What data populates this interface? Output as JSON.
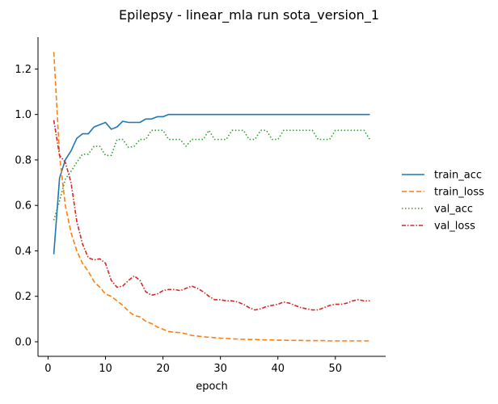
{
  "chart_data": {
    "type": "line",
    "title": "Epilepsy - linear_mla run sota_version_1",
    "xlabel": "epoch",
    "ylabel": "",
    "xlim": [
      -1.75,
      58.75
    ],
    "ylim": [
      -0.064,
      1.34
    ],
    "xticks": [
      0,
      10,
      20,
      30,
      40,
      50
    ],
    "yticks": [
      0.0,
      0.2,
      0.4,
      0.6,
      0.8,
      1.0,
      1.2
    ],
    "grid": false,
    "legend_placement": "right",
    "x": [
      1,
      2,
      3,
      4,
      5,
      6,
      7,
      8,
      9,
      10,
      11,
      12,
      13,
      14,
      15,
      16,
      17,
      18,
      19,
      20,
      21,
      22,
      23,
      24,
      25,
      26,
      27,
      28,
      29,
      30,
      31,
      32,
      33,
      34,
      35,
      36,
      37,
      38,
      39,
      40,
      41,
      42,
      43,
      44,
      45,
      46,
      47,
      48,
      49,
      50,
      51,
      52,
      53,
      54,
      55,
      56
    ],
    "series": [
      {
        "name": "train_acc",
        "color": "#1f77b4",
        "dash": "solid",
        "values": [
          0.385,
          0.72,
          0.8,
          0.84,
          0.895,
          0.915,
          0.915,
          0.945,
          0.955,
          0.965,
          0.935,
          0.945,
          0.97,
          0.965,
          0.965,
          0.965,
          0.98,
          0.98,
          0.99,
          0.99,
          1.0,
          1.0,
          1.0,
          1.0,
          1.0,
          1.0,
          1.0,
          1.0,
          1.0,
          1.0,
          1.0,
          1.0,
          1.0,
          1.0,
          1.0,
          1.0,
          1.0,
          1.0,
          1.0,
          1.0,
          1.0,
          1.0,
          1.0,
          1.0,
          1.0,
          1.0,
          1.0,
          1.0,
          1.0,
          1.0,
          1.0,
          1.0,
          1.0,
          1.0,
          1.0,
          1.0
        ]
      },
      {
        "name": "train_loss",
        "color": "#ff7f0e",
        "dash": "dashed",
        "values": [
          1.275,
          0.82,
          0.6,
          0.48,
          0.4,
          0.345,
          0.31,
          0.265,
          0.24,
          0.21,
          0.2,
          0.18,
          0.16,
          0.135,
          0.115,
          0.11,
          0.09,
          0.08,
          0.065,
          0.055,
          0.045,
          0.042,
          0.04,
          0.035,
          0.028,
          0.025,
          0.022,
          0.02,
          0.018,
          0.016,
          0.015,
          0.013,
          0.012,
          0.011,
          0.01,
          0.01,
          0.009,
          0.008,
          0.008,
          0.007,
          0.007,
          0.006,
          0.006,
          0.006,
          0.005,
          0.005,
          0.005,
          0.005,
          0.004,
          0.004,
          0.004,
          0.004,
          0.004,
          0.004,
          0.004,
          0.004
        ]
      },
      {
        "name": "val_acc",
        "color": "#2ca02c",
        "dash": "dotted",
        "values": [
          0.535,
          0.62,
          0.715,
          0.75,
          0.79,
          0.825,
          0.825,
          0.86,
          0.86,
          0.82,
          0.82,
          0.89,
          0.89,
          0.855,
          0.86,
          0.89,
          0.89,
          0.93,
          0.93,
          0.93,
          0.89,
          0.89,
          0.89,
          0.86,
          0.89,
          0.89,
          0.89,
          0.93,
          0.89,
          0.89,
          0.89,
          0.93,
          0.93,
          0.93,
          0.89,
          0.89,
          0.93,
          0.93,
          0.89,
          0.89,
          0.93,
          0.93,
          0.93,
          0.93,
          0.93,
          0.93,
          0.89,
          0.89,
          0.89,
          0.93,
          0.93,
          0.93,
          0.93,
          0.93,
          0.93,
          0.89
        ]
      },
      {
        "name": "val_loss",
        "color": "#d62728",
        "dash": "dashdot",
        "values": [
          0.975,
          0.82,
          0.79,
          0.7,
          0.53,
          0.43,
          0.37,
          0.36,
          0.365,
          0.345,
          0.27,
          0.24,
          0.245,
          0.27,
          0.29,
          0.27,
          0.22,
          0.205,
          0.21,
          0.225,
          0.23,
          0.23,
          0.225,
          0.235,
          0.245,
          0.235,
          0.22,
          0.2,
          0.185,
          0.185,
          0.18,
          0.18,
          0.175,
          0.165,
          0.15,
          0.14,
          0.145,
          0.155,
          0.16,
          0.165,
          0.175,
          0.17,
          0.16,
          0.15,
          0.145,
          0.14,
          0.14,
          0.15,
          0.16,
          0.165,
          0.165,
          0.17,
          0.18,
          0.185,
          0.18,
          0.18
        ]
      }
    ]
  }
}
